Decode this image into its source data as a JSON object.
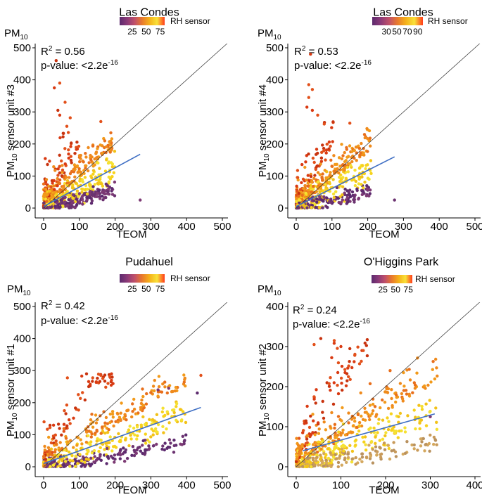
{
  "legend_gradient": [
    "#5c2a6e",
    "#8b3a78",
    "#c0506a",
    "#e97a2c",
    "#f5b21a",
    "#f8e23a",
    "#ff3b1a"
  ],
  "fit_color": "#3f6fc4",
  "chart_data": [
    {
      "type": "scatter",
      "title": "Las Condes",
      "pm_label": "PM",
      "pm_sub": "10",
      "ylabel_pre": "PM",
      "ylabel_sub": "10",
      "ylabel_post": " sensor unit #3",
      "xlabel": "TEOM",
      "xlim": [
        0,
        500
      ],
      "ylim": [
        0,
        500
      ],
      "xticks": [
        "0",
        "100",
        "200",
        "300",
        "400",
        "500"
      ],
      "yticks": [
        "0",
        "100",
        "200",
        "300",
        "400",
        "500"
      ],
      "r2_pre": "R",
      "r2_sup": "2",
      "r2_value": " = 0.56",
      "pval_text": "p-value: <2.2e",
      "pval_sup": "-16",
      "legend_title": "RH sensor",
      "legend_ticks": [
        "25",
        "50",
        "75"
      ],
      "fit": {
        "x0": 0,
        "y0": 5,
        "x1": 270,
        "y1": 168
      },
      "cloud": {
        "xmax": 200,
        "ymax": 290,
        "slope": 0.62
      },
      "outliers": [
        [
          35,
          460
        ],
        [
          45,
          390
        ],
        [
          30,
          375
        ],
        [
          60,
          330
        ],
        [
          40,
          305
        ],
        [
          45,
          290
        ],
        [
          65,
          255
        ],
        [
          160,
          270
        ],
        [
          270,
          25
        ]
      ]
    },
    {
      "type": "scatter",
      "title": "Las Condes",
      "pm_label": "PM",
      "pm_sub": "10",
      "ylabel_pre": "PM",
      "ylabel_sub": "10",
      "ylabel_post": " sensor unit #4",
      "xlabel": "TEOM",
      "xlim": [
        0,
        500
      ],
      "ylim": [
        0,
        500
      ],
      "xticks": [
        "0",
        "100",
        "200",
        "300",
        "400",
        "500"
      ],
      "yticks": [
        "0",
        "100",
        "200",
        "300",
        "400",
        "500"
      ],
      "r2_pre": "R",
      "r2_sup": "2",
      "r2_value": " = 0.53",
      "pval_text": "p-value: <2.2e",
      "pval_sup": "-16",
      "legend_title": "RH sensor",
      "legend_ticks": [
        "30",
        "50",
        "70",
        "90"
      ],
      "fit": {
        "x0": 0,
        "y0": 5,
        "x1": 275,
        "y1": 160
      },
      "cloud": {
        "xmax": 210,
        "ymax": 270,
        "slope": 0.58
      },
      "outliers": [
        [
          40,
          480
        ],
        [
          35,
          385
        ],
        [
          45,
          370
        ],
        [
          35,
          345
        ],
        [
          30,
          315
        ],
        [
          45,
          305
        ],
        [
          60,
          290
        ],
        [
          150,
          265
        ],
        [
          275,
          25
        ]
      ]
    },
    {
      "type": "scatter",
      "title": "Pudahuel",
      "pm_label": "PM",
      "pm_sub": "10",
      "ylabel_pre": "PM",
      "ylabel_sub": "10",
      "ylabel_post": " sensor unit #1",
      "xlabel": "TEOM",
      "xlim": [
        0,
        500
      ],
      "ylim": [
        0,
        500
      ],
      "xticks": [
        "0",
        "100",
        "200",
        "300",
        "400",
        "500"
      ],
      "yticks": [
        "0",
        "100",
        "200",
        "300",
        "400",
        "500"
      ],
      "r2_pre": "R",
      "r2_sup": "2",
      "r2_value": " = 0.42",
      "pval_text": "p-value: <2.2e",
      "pval_sup": "-16",
      "legend_title": "RH sensor",
      "legend_ticks": [
        "25",
        "50",
        "75"
      ],
      "fit": {
        "x0": 0,
        "y0": 10,
        "x1": 440,
        "y1": 185
      },
      "cloud": {
        "xmax": 400,
        "ymax": 290,
        "slope": 0.42
      },
      "outliers": [
        [
          120,
          290
        ],
        [
          190,
          290
        ],
        [
          160,
          285
        ],
        [
          440,
          285
        ],
        [
          350,
          245
        ],
        [
          320,
          240
        ],
        [
          430,
          230
        ]
      ]
    },
    {
      "type": "scatter",
      "title": "O'Higgins Park",
      "pm_label": "PM",
      "pm_sub": "10",
      "ylabel_pre": "PM",
      "ylabel_sub": "10",
      "ylabel_post": " sensor unit #2",
      "xlabel": "TEOM",
      "xlim": [
        0,
        400
      ],
      "ylim": [
        0,
        400
      ],
      "xticks": [
        "0",
        "100",
        "200",
        "300",
        "400"
      ],
      "yticks": [
        "0",
        "100",
        "200",
        "300",
        "400"
      ],
      "r2_pre": "R",
      "r2_sup": "2",
      "r2_value": " = 0.24",
      "pval_text": "p-value: <2.2e",
      "pval_sup": "-16",
      "legend_title": "RH sensor",
      "legend_ticks": [
        "25",
        "50",
        "75"
      ],
      "fit": {
        "x0": 15,
        "y0": 40,
        "x1": 310,
        "y1": 132
      },
      "cloud": {
        "xmax": 320,
        "ymax": 320,
        "slope": 0.45
      },
      "outliers": [
        [
          55,
          320
        ],
        [
          85,
          315
        ],
        [
          40,
          305
        ],
        [
          100,
          300
        ],
        [
          120,
          295
        ],
        [
          150,
          290
        ],
        [
          210,
          240
        ],
        [
          300,
          125
        ]
      ]
    }
  ]
}
